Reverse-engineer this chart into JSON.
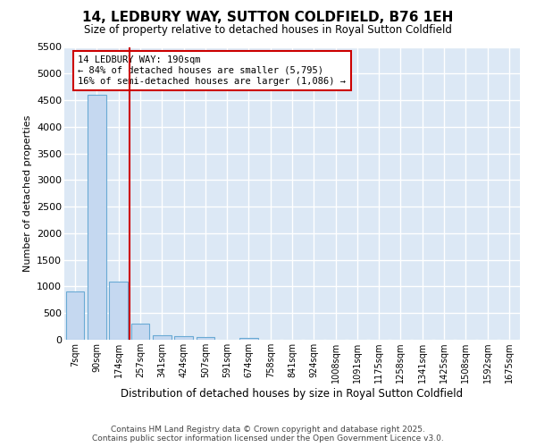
{
  "title": "14, LEDBURY WAY, SUTTON COLDFIELD, B76 1EH",
  "subtitle": "Size of property relative to detached houses in Royal Sutton Coldfield",
  "xlabel": "Distribution of detached houses by size in Royal Sutton Coldfield",
  "ylabel": "Number of detached properties",
  "bar_labels": [
    "7sqm",
    "90sqm",
    "174sqm",
    "257sqm",
    "341sqm",
    "424sqm",
    "507sqm",
    "591sqm",
    "674sqm",
    "758sqm",
    "841sqm",
    "924sqm",
    "1008sqm",
    "1091sqm",
    "1175sqm",
    "1258sqm",
    "1341sqm",
    "1425sqm",
    "1508sqm",
    "1592sqm",
    "1675sqm"
  ],
  "bar_values": [
    900,
    4600,
    1100,
    300,
    80,
    70,
    50,
    0,
    40,
    0,
    0,
    0,
    0,
    0,
    0,
    0,
    0,
    0,
    0,
    0,
    0
  ],
  "bar_color": "#c5d8f0",
  "bar_edge_color": "#6aaad4",
  "axes_bg_color": "#dce8f5",
  "figure_bg_color": "#ffffff",
  "grid_color": "#ffffff",
  "annotation_text": "14 LEDBURY WAY: 190sqm\n← 84% of detached houses are smaller (5,795)\n16% of semi-detached houses are larger (1,086) →",
  "vline_x_index": 2.5,
  "vline_color": "#cc0000",
  "annotation_box_color": "#cc0000",
  "ylim": [
    0,
    5500
  ],
  "yticks": [
    0,
    500,
    1000,
    1500,
    2000,
    2500,
    3000,
    3500,
    4000,
    4500,
    5000,
    5500
  ],
  "footer_line1": "Contains HM Land Registry data © Crown copyright and database right 2025.",
  "footer_line2": "Contains public sector information licensed under the Open Government Licence v3.0."
}
